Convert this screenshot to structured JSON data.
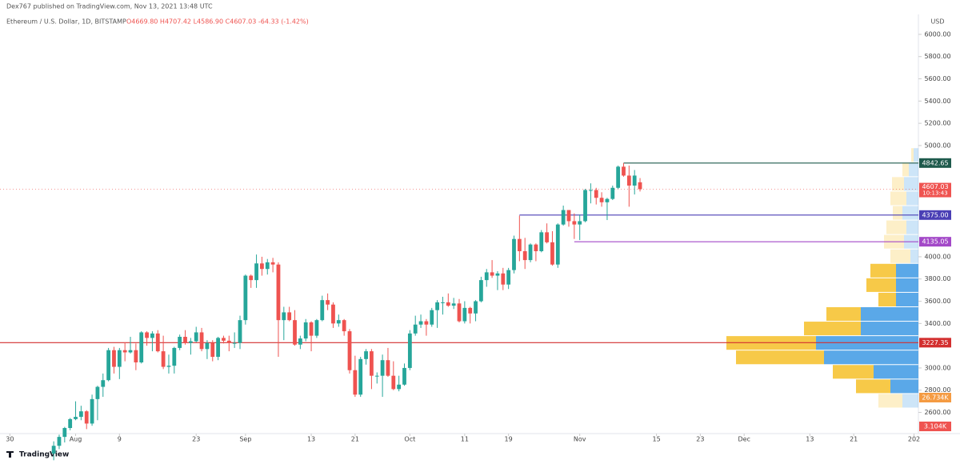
{
  "chart_data": {
    "type": "candlestick",
    "published": "Dex767 published on TradingView.com, Nov 13, 2021 13:48 UTC",
    "symbol": "Ethereum / U.S. Dollar, 1D, BITSTAMP",
    "ohlc_legend": "O4669.80 H4707.42 L4586.90 C4607.03 -64.33 (-1.42%)",
    "currency": "USD",
    "footer": "TradingView",
    "up_color": "#26a69a",
    "down_color": "#ef5350",
    "xlim": [
      -9.8,
      157.8
    ],
    "ylim": [
      2424,
      6165
    ],
    "xticks": [
      {
        "value": -8,
        "label": "30"
      },
      {
        "value": 4,
        "label": "Aug"
      },
      {
        "value": 12,
        "label": "9"
      },
      {
        "value": 26,
        "label": "23"
      },
      {
        "value": 35,
        "label": "Sep"
      },
      {
        "value": 47,
        "label": "13"
      },
      {
        "value": 55,
        "label": "21"
      },
      {
        "value": 65,
        "label": "Oct"
      },
      {
        "value": 75,
        "label": "11"
      },
      {
        "value": 83,
        "label": "19"
      },
      {
        "value": 96,
        "label": "Nov"
      },
      {
        "value": 110,
        "label": "15"
      },
      {
        "value": 118,
        "label": "23"
      },
      {
        "value": 126,
        "label": "Dec"
      },
      {
        "value": 138,
        "label": "13"
      },
      {
        "value": 146,
        "label": "21"
      },
      {
        "value": 157,
        "label": "202"
      }
    ],
    "yticks": [
      {
        "value": 6000,
        "label": "6000.00"
      },
      {
        "value": 5800,
        "label": "5800.00"
      },
      {
        "value": 5600,
        "label": "5600.00"
      },
      {
        "value": 5400,
        "label": "5400.00"
      },
      {
        "value": 5200,
        "label": "5200.00"
      },
      {
        "value": 5000,
        "label": "5000.00"
      },
      {
        "value": 4000,
        "label": "4000.00"
      },
      {
        "value": 3800,
        "label": "3800.00"
      },
      {
        "value": 3600,
        "label": "3600.00"
      },
      {
        "value": 3400,
        "label": "3400.00"
      },
      {
        "value": 3000,
        "label": "3000.00"
      },
      {
        "value": 2800,
        "label": "2800.00"
      },
      {
        "value": 2600,
        "label": "2600.00"
      }
    ],
    "open": [
      2230,
      2300,
      2380,
      2460,
      2540,
      2560,
      2610,
      2500,
      2720,
      2830,
      2890,
      3160,
      3010,
      3160,
      3140,
      3160,
      3050,
      3320,
      3270,
      3310,
      3150,
      3010,
      3020,
      3180,
      3280,
      3225,
      3240,
      3320,
      3170,
      3225,
      3100,
      3270,
      3245,
      3225,
      3225,
      3430,
      3830,
      3790,
      3940,
      3890,
      3950,
      3930,
      3430,
      3500,
      3430,
      3210,
      3265,
      3410,
      3290,
      3430,
      3610,
      3570,
      3400,
      3430,
      3330,
      2980,
      2760,
      3080,
      3150,
      2930,
      2930,
      3070,
      2930,
      2810,
      2850,
      3000,
      3310,
      3390,
      3420,
      3390,
      3520,
      3590,
      3590,
      3560,
      3580,
      3420,
      3540,
      3490,
      3600,
      3790,
      3860,
      3830,
      3850,
      3750,
      3880,
      4160,
      4050,
      3970,
      4110,
      4050,
      4220,
      4130,
      3930,
      4290,
      4420,
      4320,
      4290,
      4320,
      4600,
      4600,
      4530,
      4490,
      4520,
      4620,
      4810,
      4730,
      4640,
      4669.8
    ],
    "high": [
      2340,
      2400,
      2470,
      2550,
      2700,
      2660,
      2620,
      2760,
      2840,
      2950,
      3180,
      3190,
      3180,
      3230,
      3280,
      3220,
      3330,
      3330,
      3330,
      3340,
      3290,
      3120,
      3190,
      3300,
      3340,
      3270,
      3370,
      3360,
      3250,
      3250,
      3280,
      3290,
      3290,
      3320,
      3470,
      3840,
      3840,
      4020,
      4000,
      3980,
      3990,
      3950,
      3550,
      3550,
      3520,
      3290,
      3440,
      3420,
      3440,
      3650,
      3670,
      3590,
      3480,
      3440,
      3350,
      3110,
      3100,
      3170,
      3170,
      2960,
      3120,
      3180,
      3060,
      2930,
      3040,
      3340,
      3470,
      3480,
      3440,
      3540,
      3610,
      3640,
      3670,
      3630,
      3620,
      3600,
      3550,
      3610,
      3820,
      3890,
      3970,
      3870,
      3900,
      3900,
      4190,
      4370,
      4170,
      4120,
      4120,
      4240,
      4300,
      4230,
      4300,
      4460,
      4420,
      4390,
      4380,
      4610,
      4660,
      4620,
      4580,
      4530,
      4640,
      4820,
      4842.65,
      4820,
      4780,
      4707.42
    ],
    "low": [
      2170,
      2270,
      2330,
      2440,
      2530,
      2530,
      2450,
      2480,
      2530,
      2740,
      2880,
      2950,
      2900,
      3060,
      3130,
      2980,
      3040,
      3200,
      3150,
      3140,
      2990,
      2950,
      2950,
      3160,
      3210,
      3120,
      3230,
      3150,
      3080,
      3060,
      3070,
      3220,
      3150,
      3180,
      3170,
      3390,
      3720,
      3720,
      3830,
      3840,
      3860,
      3100,
      3250,
      3420,
      3200,
      3170,
      3240,
      3150,
      3270,
      3420,
      3520,
      3360,
      3370,
      3290,
      2950,
      2740,
      2740,
      3030,
      2810,
      2860,
      2740,
      2920,
      2800,
      2790,
      2840,
      2980,
      3290,
      3360,
      3290,
      3370,
      3360,
      3480,
      3550,
      3530,
      3410,
      3400,
      3400,
      3420,
      3590,
      3730,
      3810,
      3700,
      3700,
      3710,
      3850,
      3960,
      3890,
      3950,
      3960,
      4040,
      4120,
      3920,
      3900,
      4280,
      4270,
      4160,
      4150,
      4310,
      4480,
      4470,
      4450,
      4330,
      4510,
      4610,
      4720,
      4450,
      4560,
      4586.9
    ],
    "close": [
      2300,
      2380,
      2460,
      2540,
      2560,
      2610,
      2500,
      2720,
      2830,
      2890,
      3160,
      3010,
      3160,
      3140,
      3160,
      3050,
      3320,
      3270,
      3310,
      3150,
      3010,
      3020,
      3180,
      3280,
      3225,
      3240,
      3320,
      3170,
      3225,
      3100,
      3270,
      3245,
      3225,
      3225,
      3430,
      3830,
      3790,
      3940,
      3890,
      3950,
      3930,
      3430,
      3500,
      3430,
      3210,
      3265,
      3410,
      3290,
      3430,
      3610,
      3570,
      3400,
      3430,
      3330,
      2980,
      2760,
      3080,
      3150,
      2930,
      2930,
      3070,
      2930,
      2810,
      2850,
      3000,
      3310,
      3390,
      3420,
      3390,
      3520,
      3590,
      3590,
      3560,
      3580,
      3420,
      3540,
      3490,
      3600,
      3790,
      3860,
      3830,
      3850,
      3750,
      3880,
      4160,
      4050,
      3970,
      4110,
      4050,
      4220,
      4130,
      3930,
      4290,
      4420,
      4320,
      4290,
      4320,
      4600,
      4600,
      4530,
      4490,
      4520,
      4620,
      4810,
      4730,
      4640,
      4730,
      4607.03
    ],
    "levels": [
      {
        "value": 4842.65,
        "label": "4842.65",
        "color": "#1e5a4c",
        "start": 104
      },
      {
        "value": 4375,
        "label": "4375.00",
        "color": "#4a3fb5",
        "start": 85
      },
      {
        "value": 4135.05,
        "label": "4135.05",
        "color": "#a349c8",
        "start": 95
      },
      {
        "value": 3227.35,
        "label": "3227.35",
        "color": "#d32f2f",
        "start": -9.8
      }
    ],
    "last_price": {
      "value": 4607.03,
      "label": "4607.03",
      "countdown": "10:13:43",
      "color": "#ef5350"
    },
    "volume_labels": [
      "26.734K",
      "3.104K"
    ],
    "volume_profile": {
      "bins": [
        2640,
        2770,
        2900,
        3030,
        3160,
        3290,
        3420,
        3550,
        3680,
        3810,
        3940,
        4070,
        4200,
        4330,
        4460,
        4590,
        4720,
        4850,
        4980
      ],
      "up": [
        20,
        35,
        56,
        118,
        128,
        72,
        72,
        28,
        28,
        28,
        10,
        18,
        15,
        20,
        15,
        18,
        12,
        6
      ],
      "down": [
        30,
        43,
        51,
        110,
        112,
        71,
        43,
        22,
        37,
        32,
        25,
        25,
        25,
        12,
        20,
        15,
        8,
        3
      ],
      "up_color": "#5aa8e8",
      "down_color": "#f7c948",
      "value_area": [
        2770,
        3940
      ]
    }
  }
}
